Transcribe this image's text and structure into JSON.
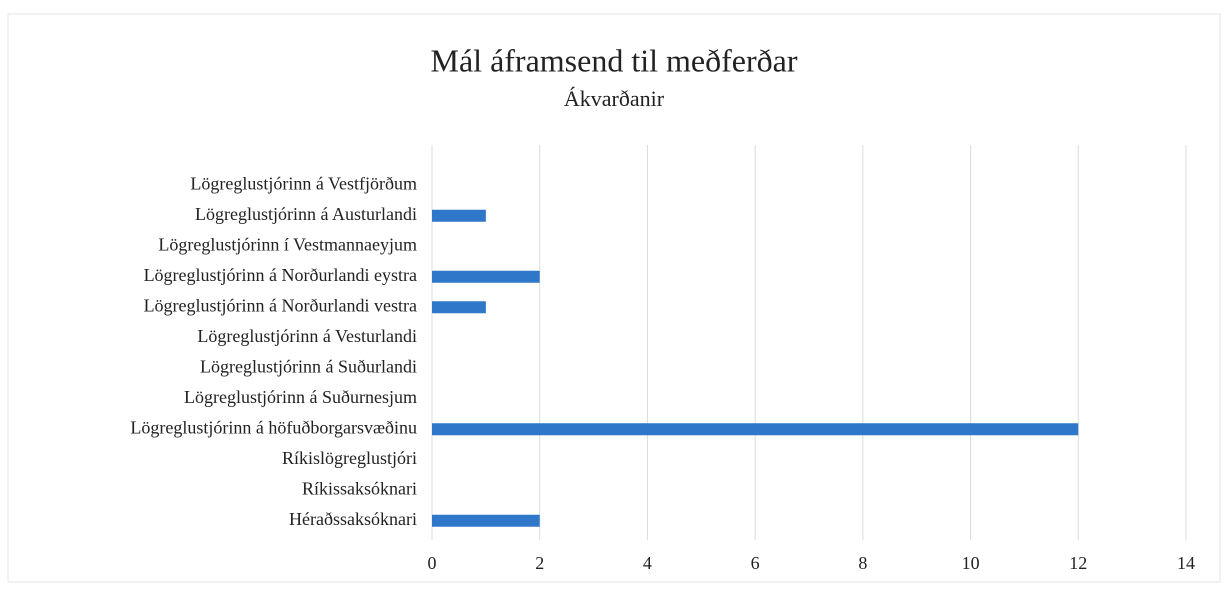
{
  "chart_data": {
    "type": "bar",
    "orientation": "horizontal",
    "title": "Mál áframsend til meðferðar",
    "subtitle": "Ákvarðanir",
    "categories": [
      "Lögreglustjórinn á Vestfjörðum",
      "Lögreglustjórinn á Austurlandi",
      "Lögreglustjórinn í Vestmannaeyjum",
      "Lögreglustjórinn á Norðurlandi eystra",
      "Lögreglustjórinn á Norðurlandi vestra",
      "Lögreglustjórinn á Vesturlandi",
      "Lögreglustjórinn á Suðurlandi",
      "Lögreglustjórinn á Suðurnesjum",
      "Lögreglustjórinn á höfuðborgarsvæðinu",
      "Ríkislögreglustjóri",
      "Ríkissaksóknari",
      "Héraðssaksóknari"
    ],
    "values": [
      0,
      1,
      0,
      2,
      1,
      0,
      0,
      0,
      12,
      0,
      0,
      2
    ],
    "color": "#2f77c8",
    "xlim": [
      0,
      14
    ],
    "xticks": [
      0,
      2,
      4,
      6,
      8,
      10,
      12,
      14
    ],
    "grid": true
  }
}
